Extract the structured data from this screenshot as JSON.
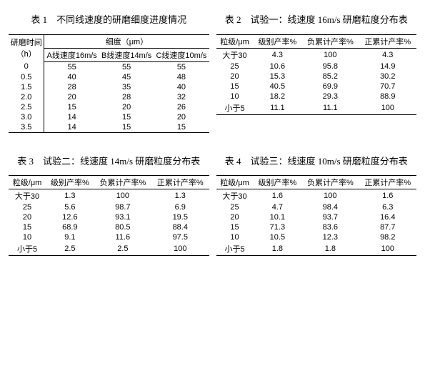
{
  "table1": {
    "title": "表 1　不同线速度的研磨细度进度情况",
    "head_time": "研磨时间",
    "head_time_unit": "（h）",
    "head_fineness": "细度（μm）",
    "subA": "A线速度16m/s",
    "subB": "B线速度14m/s",
    "subC": "C线速度10m/s",
    "rows": [
      {
        "t": "0",
        "a": "55",
        "b": "55",
        "c": "55"
      },
      {
        "t": "0.5",
        "a": "40",
        "b": "45",
        "c": "48"
      },
      {
        "t": "1.5",
        "a": "28",
        "b": "35",
        "c": "40"
      },
      {
        "t": "2.0",
        "a": "20",
        "b": "28",
        "c": "32"
      },
      {
        "t": "2.5",
        "a": "15",
        "b": "20",
        "c": "26"
      },
      {
        "t": "3.0",
        "a": "14",
        "b": "15",
        "c": "20"
      },
      {
        "t": "3.5",
        "a": "14",
        "b": "15",
        "c": "15"
      }
    ]
  },
  "table2": {
    "title": "表 2　试验一：线速度 16m/s 研磨粒度分布表",
    "h0": "粒级/μm",
    "h1": "级别产率%",
    "h2": "负累计产率%",
    "h3": "正累计产率%",
    "rows": [
      {
        "c0": "大于30",
        "c1": "4.3",
        "c2": "100",
        "c3": "4.3"
      },
      {
        "c0": "25",
        "c1": "10.6",
        "c2": "95.8",
        "c3": "14.9"
      },
      {
        "c0": "20",
        "c1": "15.3",
        "c2": "85.2",
        "c3": "30.2"
      },
      {
        "c0": "15",
        "c1": "40.5",
        "c2": "69.9",
        "c3": "70.7"
      },
      {
        "c0": "10",
        "c1": "18.2",
        "c2": "29.3",
        "c3": "88.9"
      },
      {
        "c0": "小于5",
        "c1": "11.1",
        "c2": "11.1",
        "c3": "100"
      }
    ]
  },
  "table3": {
    "title": "表 3　试验二：线速度 14m/s 研磨粒度分布表",
    "h0": "粒级/μm",
    "h1": "级别产率%",
    "h2": "负累计产率%",
    "h3": "正累计产率%",
    "rows": [
      {
        "c0": "大于30",
        "c1": "1.3",
        "c2": "100",
        "c3": "1.3"
      },
      {
        "c0": "25",
        "c1": "5.6",
        "c2": "98.7",
        "c3": "6.9"
      },
      {
        "c0": "20",
        "c1": "12.6",
        "c2": "93.1",
        "c3": "19.5"
      },
      {
        "c0": "15",
        "c1": "68.9",
        "c2": "80.5",
        "c3": "88.4"
      },
      {
        "c0": "10",
        "c1": "9.1",
        "c2": "11.6",
        "c3": "97.5"
      },
      {
        "c0": "小于5",
        "c1": "2.5",
        "c2": "2.5",
        "c3": "100"
      }
    ]
  },
  "table4": {
    "title": "表 4　试验三：线速度 10m/s 研磨粒度分布表",
    "h0": "粒级/μm",
    "h1": "级别产率%",
    "h2": "负累计产率%",
    "h3": "正累计产率%",
    "rows": [
      {
        "c0": "大于30",
        "c1": "1.6",
        "c2": "100",
        "c3": "1.6"
      },
      {
        "c0": "25",
        "c1": "4.7",
        "c2": "98.4",
        "c3": "6.3"
      },
      {
        "c0": "20",
        "c1": "10.1",
        "c2": "93.7",
        "c3": "16.4"
      },
      {
        "c0": "15",
        "c1": "71.3",
        "c2": "83.6",
        "c3": "87.7"
      },
      {
        "c0": "10",
        "c1": "10.5",
        "c2": "12.3",
        "c3": "98.2"
      },
      {
        "c0": "小于5",
        "c1": "1.8",
        "c2": "1.8",
        "c3": "100"
      }
    ]
  }
}
